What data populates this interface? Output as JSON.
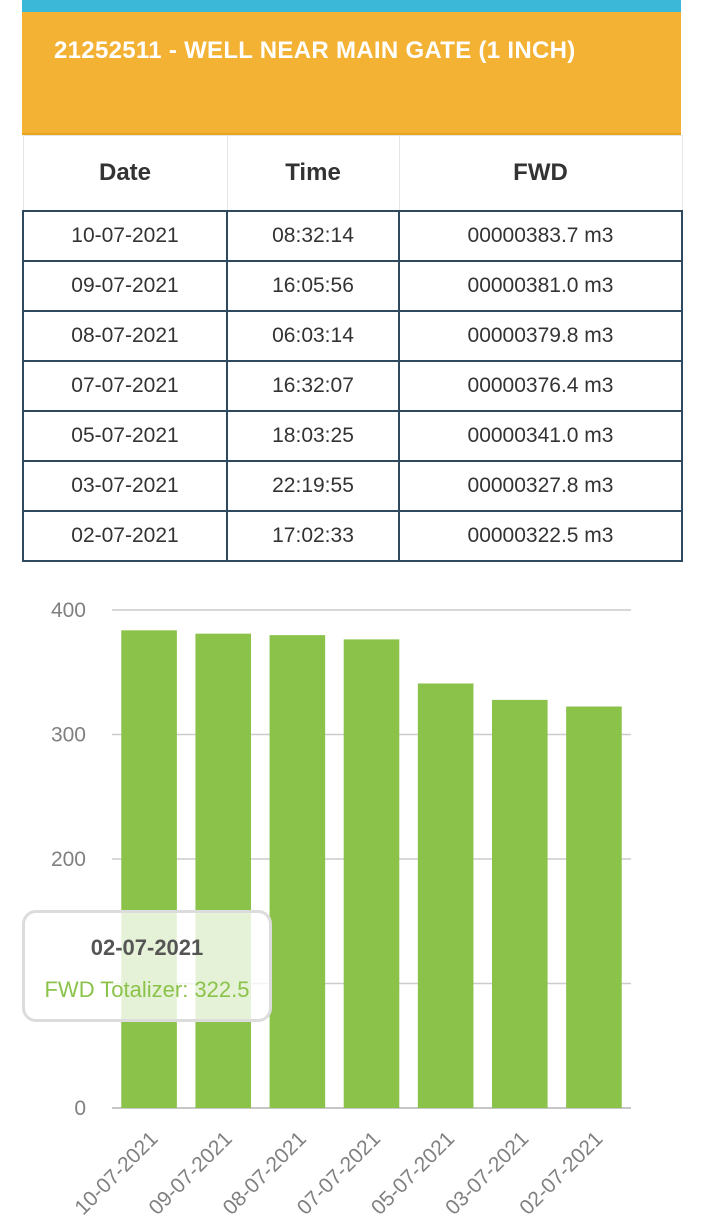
{
  "header": {
    "title": "21252511 - WELL NEAR MAIN GATE (1 INCH)",
    "strip_color": "#3bb8d8",
    "title_bg_color": "#f4b234"
  },
  "table": {
    "columns": [
      "Date",
      "Time",
      "FWD"
    ],
    "rows": [
      {
        "date": "10-07-2021",
        "time": "08:32:14",
        "fwd": "00000383.7 m3"
      },
      {
        "date": "09-07-2021",
        "time": "16:05:56",
        "fwd": "00000381.0 m3"
      },
      {
        "date": "08-07-2021",
        "time": "06:03:14",
        "fwd": "00000379.8 m3"
      },
      {
        "date": "07-07-2021",
        "time": "16:32:07",
        "fwd": "00000376.4 m3"
      },
      {
        "date": "05-07-2021",
        "time": "18:03:25",
        "fwd": "00000341.0 m3"
      },
      {
        "date": "03-07-2021",
        "time": "22:19:55",
        "fwd": "00000327.8 m3"
      },
      {
        "date": "02-07-2021",
        "time": "17:02:33",
        "fwd": "00000322.5 m3"
      }
    ]
  },
  "chart_data": {
    "type": "bar",
    "categories": [
      "10-07-2021",
      "09-07-2021",
      "08-07-2021",
      "07-07-2021",
      "05-07-2021",
      "03-07-2021",
      "02-07-2021"
    ],
    "series": [
      {
        "values": [
          383.7,
          381.0,
          379.8,
          376.4,
          341.0,
          327.8,
          322.5
        ],
        "color": "#8bc34a"
      }
    ],
    "ylim": [
      0,
      400
    ],
    "yticks": [
      0,
      100,
      200,
      300,
      400
    ],
    "ytick_labels": [
      "0",
      "",
      "200",
      "300",
      "400"
    ],
    "grid": true,
    "title": "",
    "xlabel": "",
    "ylabel": ""
  },
  "tooltip": {
    "date": "02-07-2021",
    "label": "FWD Totalizer: 322.5"
  }
}
